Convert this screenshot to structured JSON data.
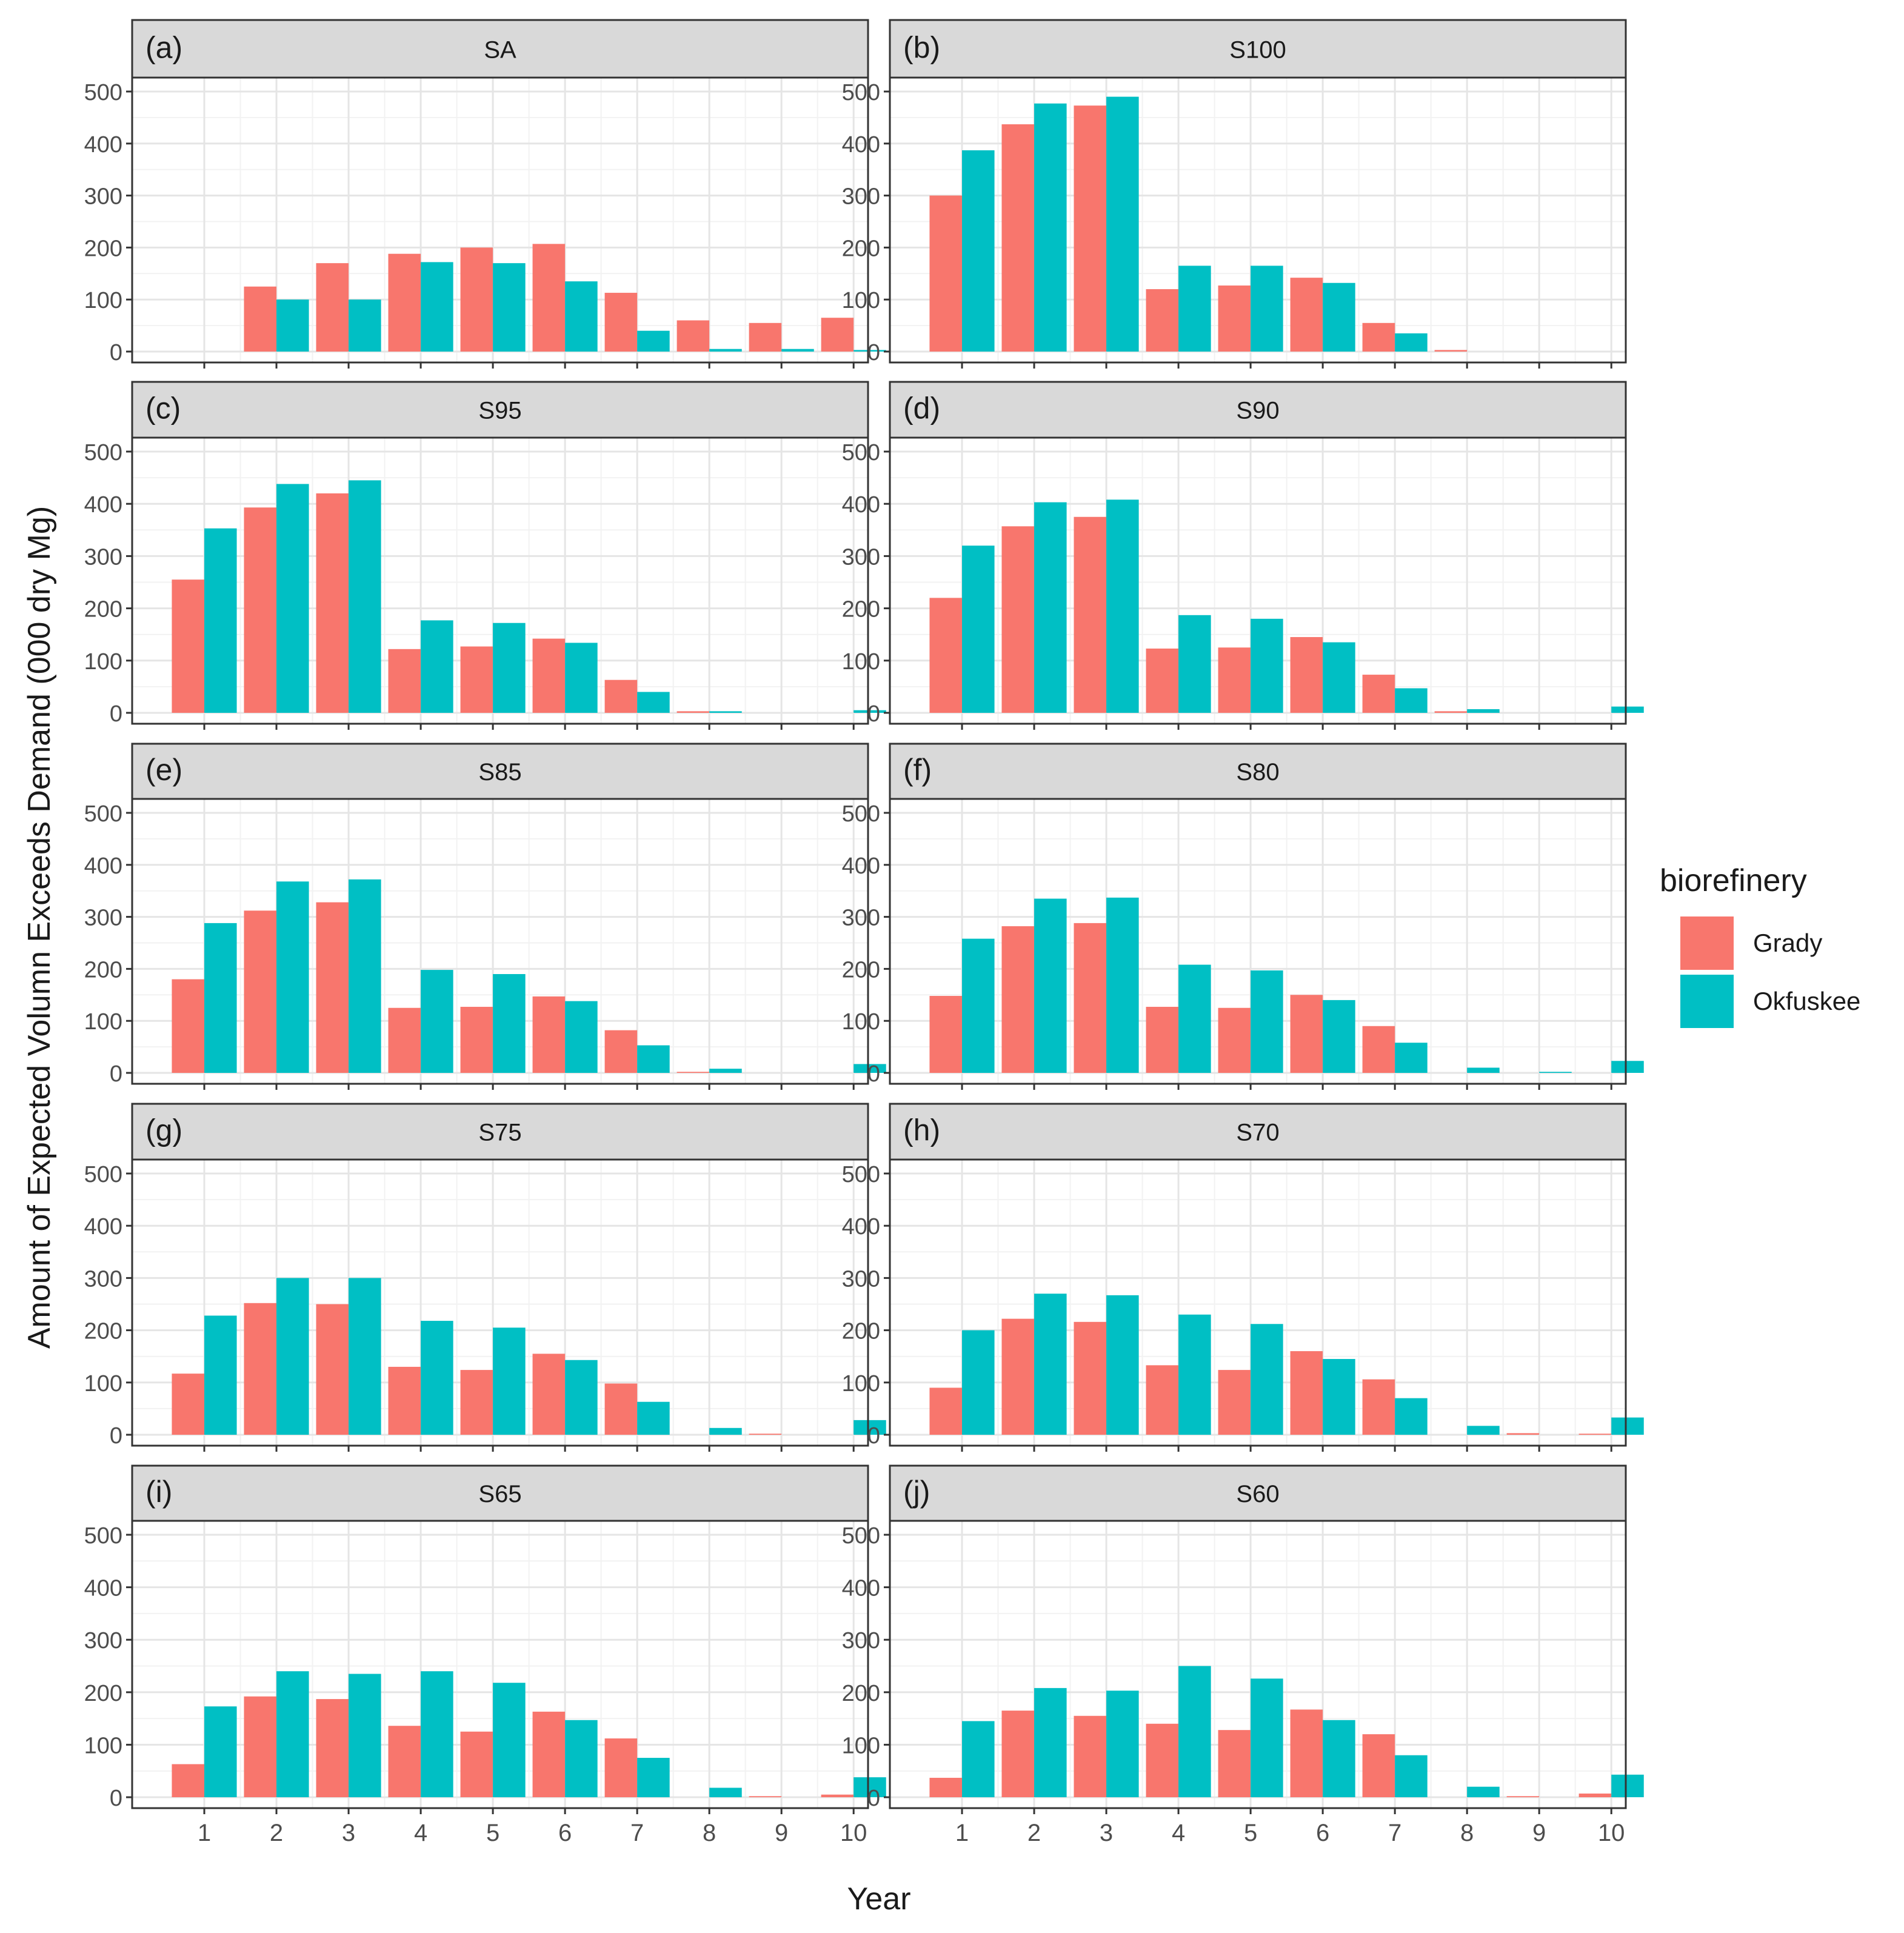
{
  "chart_data": {
    "type": "bar",
    "ylabel": "Amount of Expected Volumn Exceeds Demand (000 dry Mg)",
    "xlabel": "Year",
    "categories": [
      "1",
      "2",
      "3",
      "4",
      "5",
      "6",
      "7",
      "8",
      "9",
      "10"
    ],
    "ylim": [
      0,
      500
    ],
    "yticks": [
      "0",
      "100",
      "200",
      "300",
      "400",
      "500"
    ],
    "grid": true,
    "legend": {
      "title": "biorefinery",
      "position": "right",
      "entries": [
        {
          "name": "Grady",
          "color": "#F8766D"
        },
        {
          "name": "Okfuskee",
          "color": "#00BFC4"
        }
      ]
    },
    "colors": {
      "Grady": "#F8766D",
      "Okfuskee": "#00BFC4"
    },
    "panels": [
      {
        "tag": "(a)",
        "title": "SA",
        "series": [
          {
            "name": "Grady",
            "values": [
              0,
              125,
              170,
              188,
              200,
              207,
              113,
              60,
              55,
              65
            ]
          },
          {
            "name": "Okfuskee",
            "values": [
              0,
              100,
              100,
              172,
              170,
              135,
              40,
              5,
              5,
              3
            ]
          }
        ]
      },
      {
        "tag": "(b)",
        "title": "S100",
        "series": [
          {
            "name": "Grady",
            "values": [
              300,
              437,
              473,
              120,
              127,
              142,
              55,
              3,
              0,
              0
            ]
          },
          {
            "name": "Okfuskee",
            "values": [
              387,
              477,
              490,
              165,
              165,
              132,
              35,
              0,
              0,
              0
            ]
          }
        ]
      },
      {
        "tag": "(c)",
        "title": "S95",
        "series": [
          {
            "name": "Grady",
            "values": [
              255,
              393,
              420,
              122,
              127,
              142,
              63,
              3,
              0,
              0
            ]
          },
          {
            "name": "Okfuskee",
            "values": [
              353,
              438,
              445,
              177,
              172,
              134,
              40,
              3,
              0,
              5
            ]
          }
        ]
      },
      {
        "tag": "(d)",
        "title": "S90",
        "series": [
          {
            "name": "Grady",
            "values": [
              220,
              357,
              375,
              123,
              125,
              145,
              73,
              3,
              0,
              0
            ]
          },
          {
            "name": "Okfuskee",
            "values": [
              320,
              403,
              408,
              187,
              180,
              135,
              47,
              7,
              0,
              12
            ]
          }
        ]
      },
      {
        "tag": "(e)",
        "title": "S85",
        "series": [
          {
            "name": "Grady",
            "values": [
              180,
              312,
              328,
              125,
              127,
              147,
              82,
              2,
              0,
              0
            ]
          },
          {
            "name": "Okfuskee",
            "values": [
              288,
              368,
              372,
              198,
              190,
              138,
              53,
              8,
              0,
              17
            ]
          }
        ]
      },
      {
        "tag": "(f)",
        "title": "S80",
        "series": [
          {
            "name": "Grady",
            "values": [
              148,
              282,
              288,
              127,
              125,
              150,
              90,
              0,
              0,
              0
            ]
          },
          {
            "name": "Okfuskee",
            "values": [
              258,
              335,
              337,
              208,
              197,
              140,
              58,
              10,
              2,
              23
            ]
          }
        ]
      },
      {
        "tag": "(g)",
        "title": "S75",
        "series": [
          {
            "name": "Grady",
            "values": [
              117,
              252,
              250,
              130,
              124,
              155,
              98,
              0,
              2,
              0
            ]
          },
          {
            "name": "Okfuskee",
            "values": [
              228,
              300,
              300,
              218,
              205,
              143,
              63,
              13,
              0,
              28
            ]
          }
        ]
      },
      {
        "tag": "(h)",
        "title": "S70",
        "series": [
          {
            "name": "Grady",
            "values": [
              90,
              222,
              216,
              133,
              124,
              160,
              106,
              0,
              3,
              2
            ]
          },
          {
            "name": "Okfuskee",
            "values": [
              200,
              270,
              267,
              230,
              212,
              145,
              70,
              17,
              0,
              33
            ]
          }
        ]
      },
      {
        "tag": "(i)",
        "title": "S65",
        "series": [
          {
            "name": "Grady",
            "values": [
              63,
              192,
              187,
              136,
              125,
              163,
              112,
              0,
              2,
              5
            ]
          },
          {
            "name": "Okfuskee",
            "values": [
              173,
              240,
              235,
              240,
              218,
              147,
              75,
              18,
              0,
              38
            ]
          }
        ]
      },
      {
        "tag": "(j)",
        "title": "S60",
        "series": [
          {
            "name": "Grady",
            "values": [
              37,
              165,
              155,
              140,
              128,
              167,
              120,
              0,
              2,
              7
            ]
          },
          {
            "name": "Okfuskee",
            "values": [
              145,
              208,
              203,
              250,
              226,
              147,
              80,
              20,
              0,
              43
            ]
          }
        ]
      }
    ]
  }
}
